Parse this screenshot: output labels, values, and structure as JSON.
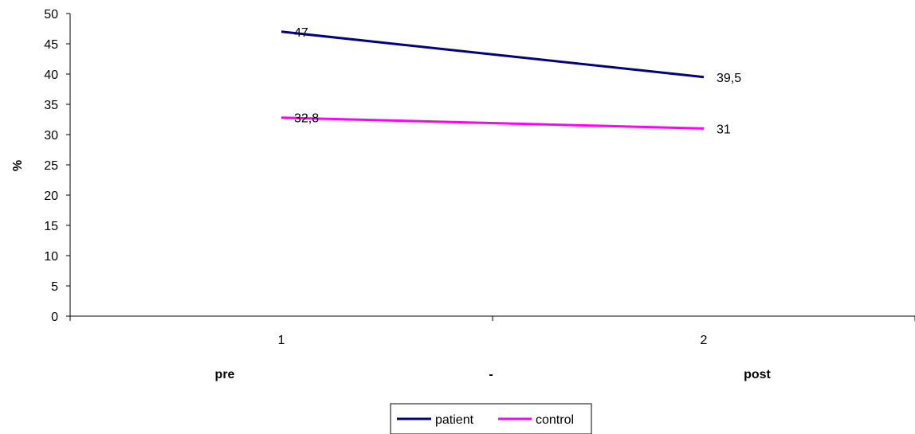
{
  "chart_data": {
    "type": "line",
    "title": "",
    "ylabel": "%",
    "xlabel": "",
    "x": [
      "1",
      "2"
    ],
    "ylim": [
      0,
      50
    ],
    "yticks": [
      0,
      5,
      10,
      15,
      20,
      25,
      30,
      35,
      40,
      45,
      50
    ],
    "yticks_labels": [
      "0",
      "5",
      "10",
      "15",
      "20",
      "25",
      "30",
      "35",
      "40",
      "45",
      "50"
    ],
    "grid": false,
    "legend_position": "bottom",
    "x_sublabels": [
      "pre",
      "-",
      "post"
    ],
    "series": [
      {
        "name": "patient",
        "values": [
          47,
          39.5
        ],
        "labels": [
          "47",
          "39,5"
        ],
        "color": "#000080"
      },
      {
        "name": "control",
        "values": [
          32.8,
          31
        ],
        "labels": [
          "32,8",
          "31"
        ],
        "color": "#FF00FF"
      }
    ]
  }
}
